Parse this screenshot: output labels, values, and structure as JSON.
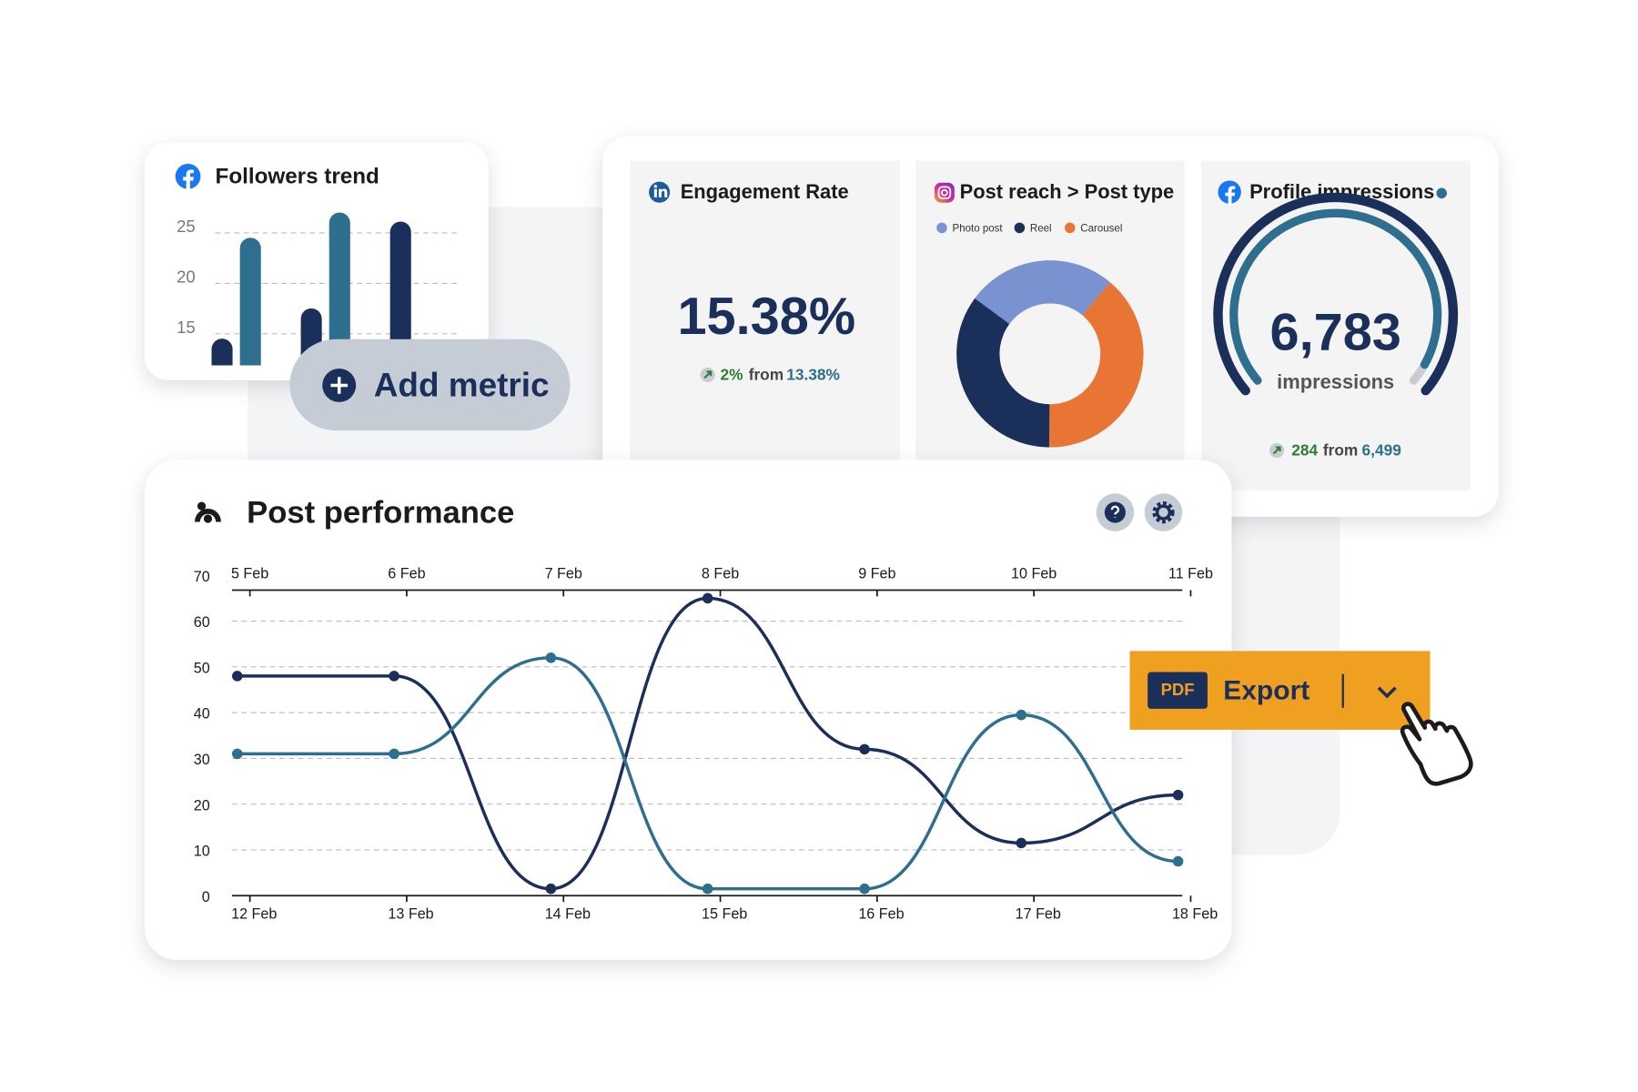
{
  "chart_data": [
    {
      "type": "bar",
      "title": "Followers trend",
      "categories": [
        null,
        null,
        null
      ],
      "series": [
        {
          "color": "#1b2f5b",
          "values": [
            14,
            17,
            25.6
          ]
        },
        {
          "color": "#2e6e8e",
          "values": [
            24,
            26.5,
            null
          ]
        }
      ],
      "ylim": [
        11.35,
        28
      ],
      "yticks": [
        15,
        20,
        25
      ],
      "grid": true
    },
    {
      "type": "pie",
      "title": "Post reach > Post type",
      "categories": [
        "Photo post",
        "Reel",
        "Carousel"
      ],
      "values": [
        26,
        35,
        39
      ],
      "colors": [
        "#7893cf",
        "#1b2f5b",
        "#e87533"
      ],
      "donut": true
    },
    {
      "type": "line",
      "title": "Post performance",
      "categories": [
        "12 Feb",
        "13 Feb",
        "14 Feb",
        "15 Feb",
        "16 Feb",
        "17 Feb",
        "18 Feb"
      ],
      "top_categories": [
        "5 Feb",
        "6 Feb",
        "7 Feb",
        "8 Feb",
        "9 Feb",
        "10 Feb",
        "11 Feb"
      ],
      "series": [
        {
          "color": "#1b2f5b",
          "values": [
            48,
            48,
            1.5,
            65,
            32,
            11.5,
            22
          ]
        },
        {
          "color": "#2e6e8e",
          "values": [
            31,
            31,
            52,
            1.5,
            1.5,
            39.5,
            7.5
          ]
        }
      ],
      "ylim": [
        0,
        70
      ],
      "yticks": [
        0,
        10,
        20,
        30,
        40,
        50,
        60,
        70
      ],
      "grid": true
    },
    {
      "type": "gauge",
      "title": "Profile impressions",
      "value": 6783,
      "value_label": "6,783",
      "unit": "impressions",
      "change": 284,
      "from": "from",
      "previous": 6499,
      "previous_label": "6,499",
      "colors": [
        "#1b2f5b",
        "#2e6e8e",
        "#c9ccd2"
      ]
    }
  ],
  "cards": {
    "engagement": {
      "title": "Engagement Rate",
      "value": "15.38%",
      "change": "2%",
      "from": "from",
      "previous": "13.38%"
    }
  },
  "buttons": {
    "add_metric": "Add metric",
    "export_badge": "PDF",
    "export": "Export"
  }
}
